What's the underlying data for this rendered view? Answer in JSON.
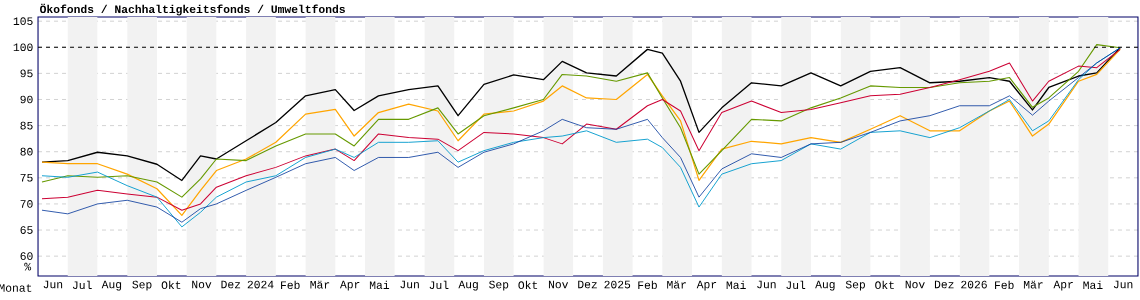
{
  "chart_data": {
    "type": "line",
    "title": "Ökofonds / Nachhaltigkeitsfonds / Umweltfonds",
    "xlabel": "Monat",
    "ylabel": "%",
    "x": [
      "2023-06-05",
      "2023-07-01",
      "2023-08-01",
      "2023-09-01",
      "2023-10-01",
      "2023-10-27",
      "2023-11-15",
      "2023-12-01",
      "2024-01-01",
      "2024-02-01",
      "2024-03-01",
      "2024-04-01",
      "2024-04-20",
      "2024-05-15",
      "2024-06-15",
      "2024-07-15",
      "2024-08-05",
      "2024-09-01",
      "2024-10-01",
      "2024-11-01",
      "2024-11-20",
      "2024-12-15",
      "2025-01-15",
      "2025-02-15",
      "2025-03-01",
      "2025-03-20",
      "2025-04-08",
      "2025-05-01",
      "2025-06-01",
      "2025-07-01",
      "2025-08-01",
      "2025-09-01",
      "2025-10-01",
      "2025-11-01",
      "2025-12-01",
      "2026-01-01",
      "2026-02-01",
      "2026-02-20",
      "2026-03-15",
      "2026-04-01",
      "2026-05-01",
      "2026-05-20",
      "2026-06-13"
    ],
    "series": [
      {
        "color": "#000000",
        "values": [
          78.0,
          78.3,
          79.9,
          79.2,
          77.6,
          74.5,
          79.2,
          78.6,
          82.1,
          85.6,
          90.7,
          91.9,
          87.9,
          90.7,
          91.9,
          92.6,
          86.9,
          92.9,
          94.7,
          93.8,
          97.3,
          95.1,
          94.5,
          99.6,
          98.9,
          93.5,
          83.7,
          88.4,
          93.2,
          92.6,
          95.1,
          92.6,
          95.4,
          96.1,
          93.2,
          93.5,
          94.2,
          93.5,
          88.0,
          92.3,
          94.5,
          95.1,
          99.9
        ]
      },
      {
        "color": "#ffa500",
        "values": [
          78.0,
          77.7,
          77.7,
          75.7,
          72.9,
          67.8,
          72.6,
          76.4,
          78.6,
          81.8,
          87.2,
          88.1,
          83.0,
          87.5,
          89.1,
          87.8,
          82.1,
          87.2,
          87.8,
          89.7,
          92.6,
          90.3,
          90.0,
          94.8,
          90.7,
          85.9,
          74.5,
          80.5,
          82.0,
          81.5,
          82.7,
          81.8,
          84.3,
          86.9,
          84.0,
          84.0,
          87.8,
          89.7,
          83.0,
          85.3,
          93.5,
          94.8,
          99.6
        ]
      },
      {
        "color": "#669900",
        "values": [
          74.2,
          75.4,
          75.1,
          75.4,
          74.2,
          71.3,
          74.8,
          78.6,
          78.3,
          81.1,
          83.4,
          83.4,
          81.1,
          86.2,
          86.2,
          88.4,
          83.4,
          86.9,
          88.4,
          90.0,
          94.8,
          94.5,
          93.5,
          95.1,
          90.3,
          84.6,
          75.7,
          80.2,
          86.2,
          85.9,
          88.4,
          90.3,
          92.6,
          92.3,
          92.3,
          93.2,
          93.5,
          94.2,
          88.5,
          90.3,
          95.4,
          100.5,
          99.9
        ]
      },
      {
        "color": "#cc0033",
        "values": [
          71.0,
          71.3,
          72.6,
          71.9,
          71.3,
          68.8,
          70.0,
          73.2,
          75.4,
          77.0,
          79.2,
          80.5,
          78.3,
          83.4,
          82.7,
          82.4,
          80.2,
          83.7,
          83.4,
          82.7,
          81.5,
          85.3,
          84.3,
          88.8,
          90.0,
          87.8,
          80.2,
          87.5,
          89.7,
          87.5,
          88.1,
          89.4,
          90.7,
          91.0,
          92.3,
          93.8,
          95.4,
          97.0,
          89.7,
          93.5,
          96.4,
          96.1,
          99.6
        ]
      },
      {
        "color": "#0099cc",
        "values": [
          75.4,
          75.1,
          76.1,
          73.5,
          71.3,
          65.6,
          68.4,
          71.3,
          74.2,
          75.4,
          78.9,
          80.5,
          78.9,
          81.8,
          81.8,
          82.1,
          78.0,
          80.2,
          81.8,
          82.7,
          83.0,
          84.0,
          81.8,
          82.4,
          80.8,
          77.0,
          69.4,
          75.7,
          77.7,
          78.3,
          81.5,
          80.5,
          83.7,
          84.0,
          82.7,
          84.6,
          87.8,
          90.0,
          84.0,
          85.9,
          93.8,
          97.0,
          99.9
        ]
      },
      {
        "color": "#003399",
        "values": [
          68.8,
          68.1,
          70.0,
          70.7,
          69.4,
          66.5,
          69.1,
          70.0,
          72.6,
          75.1,
          77.7,
          78.9,
          76.4,
          78.9,
          78.9,
          79.9,
          77.0,
          79.9,
          81.5,
          84.0,
          86.2,
          84.6,
          84.3,
          86.2,
          82.7,
          78.9,
          71.3,
          76.7,
          79.6,
          78.9,
          81.5,
          81.8,
          83.7,
          85.9,
          86.9,
          88.8,
          88.8,
          90.7,
          87.0,
          89.7,
          94.2,
          97.0,
          99.9
        ]
      }
    ],
    "xlim": [
      "2023-06-01",
      "2026-07-01"
    ],
    "ylim": [
      56.2,
      105.8
    ],
    "yticks": [
      60,
      65,
      70,
      75,
      80,
      85,
      90,
      95,
      100,
      105
    ],
    "xticks": [
      {
        "value": "2023-06-16",
        "label": "Jun"
      },
      {
        "value": "2023-07-16",
        "label": "Jul"
      },
      {
        "value": "2023-08-16",
        "label": "Aug"
      },
      {
        "value": "2023-09-16",
        "label": "Sep"
      },
      {
        "value": "2023-10-16",
        "label": "Okt"
      },
      {
        "value": "2023-11-16",
        "label": "Nov"
      },
      {
        "value": "2023-12-16",
        "label": "Dez"
      },
      {
        "value": "2024-01-16",
        "label": "2024"
      },
      {
        "value": "2024-02-15",
        "label": "Feb"
      },
      {
        "value": "2024-03-16",
        "label": "Mär"
      },
      {
        "value": "2024-04-16",
        "label": "Apr"
      },
      {
        "value": "2024-05-16",
        "label": "Mai"
      },
      {
        "value": "2024-06-16",
        "label": "Jun"
      },
      {
        "value": "2024-07-16",
        "label": "Jul"
      },
      {
        "value": "2024-08-16",
        "label": "Aug"
      },
      {
        "value": "2024-09-16",
        "label": "Sep"
      },
      {
        "value": "2024-10-16",
        "label": "Okt"
      },
      {
        "value": "2024-11-16",
        "label": "Nov"
      },
      {
        "value": "2024-12-16",
        "label": "Dez"
      },
      {
        "value": "2025-01-16",
        "label": "2025"
      },
      {
        "value": "2025-02-15",
        "label": "Feb"
      },
      {
        "value": "2025-03-16",
        "label": "Mär"
      },
      {
        "value": "2025-04-16",
        "label": "Apr"
      },
      {
        "value": "2025-05-16",
        "label": "Mai"
      },
      {
        "value": "2025-06-16",
        "label": "Jun"
      },
      {
        "value": "2025-07-16",
        "label": "Jul"
      },
      {
        "value": "2025-08-16",
        "label": "Aug"
      },
      {
        "value": "2025-09-16",
        "label": "Sep"
      },
      {
        "value": "2025-10-16",
        "label": "Okt"
      },
      {
        "value": "2025-11-16",
        "label": "Nov"
      },
      {
        "value": "2025-12-16",
        "label": "Dez"
      },
      {
        "value": "2026-01-16",
        "label": "2026"
      },
      {
        "value": "2026-02-15",
        "label": "Feb"
      },
      {
        "value": "2026-03-16",
        "label": "Mär"
      },
      {
        "value": "2026-04-16",
        "label": "Apr"
      },
      {
        "value": "2026-05-16",
        "label": "Mai"
      },
      {
        "value": "2026-06-16",
        "label": "Jun"
      }
    ],
    "grid": "y",
    "marker": "none",
    "line_style": "solid",
    "ref_lines": [
      {
        "axis": "y",
        "value": 100,
        "color": "#000000",
        "line_style": "dashed"
      }
    ],
    "bands": [
      {
        "axis": "x",
        "from": "2023-07-01",
        "to": "2023-08-01",
        "color": "#f2f2f2"
      },
      {
        "axis": "x",
        "from": "2023-09-01",
        "to": "2023-10-01",
        "color": "#f2f2f2"
      },
      {
        "axis": "x",
        "from": "2023-11-01",
        "to": "2023-12-01",
        "color": "#f2f2f2"
      },
      {
        "axis": "x",
        "from": "2024-01-01",
        "to": "2024-02-01",
        "color": "#f2f2f2"
      },
      {
        "axis": "x",
        "from": "2024-03-01",
        "to": "2024-04-01",
        "color": "#f2f2f2"
      },
      {
        "axis": "x",
        "from": "2024-05-01",
        "to": "2024-06-01",
        "color": "#f2f2f2"
      },
      {
        "axis": "x",
        "from": "2024-07-01",
        "to": "2024-08-01",
        "color": "#f2f2f2"
      },
      {
        "axis": "x",
        "from": "2024-09-01",
        "to": "2024-10-01",
        "color": "#f2f2f2"
      },
      {
        "axis": "x",
        "from": "2024-11-01",
        "to": "2024-12-01",
        "color": "#f2f2f2"
      },
      {
        "axis": "x",
        "from": "2025-01-01",
        "to": "2025-02-01",
        "color": "#f2f2f2"
      },
      {
        "axis": "x",
        "from": "2025-03-01",
        "to": "2025-04-01",
        "color": "#f2f2f2"
      },
      {
        "axis": "x",
        "from": "2025-05-01",
        "to": "2025-06-01",
        "color": "#f2f2f2"
      },
      {
        "axis": "x",
        "from": "2025-07-01",
        "to": "2025-08-01",
        "color": "#f2f2f2"
      },
      {
        "axis": "x",
        "from": "2025-09-01",
        "to": "2025-10-01",
        "color": "#f2f2f2"
      },
      {
        "axis": "x",
        "from": "2025-11-01",
        "to": "2025-12-01",
        "color": "#f2f2f2"
      },
      {
        "axis": "x",
        "from": "2026-01-01",
        "to": "2026-02-01",
        "color": "#f2f2f2"
      },
      {
        "axis": "x",
        "from": "2026-03-01",
        "to": "2026-04-01",
        "color": "#f2f2f2"
      },
      {
        "axis": "x",
        "from": "2026-05-01",
        "to": "2026-06-01",
        "color": "#f2f2f2"
      }
    ]
  }
}
